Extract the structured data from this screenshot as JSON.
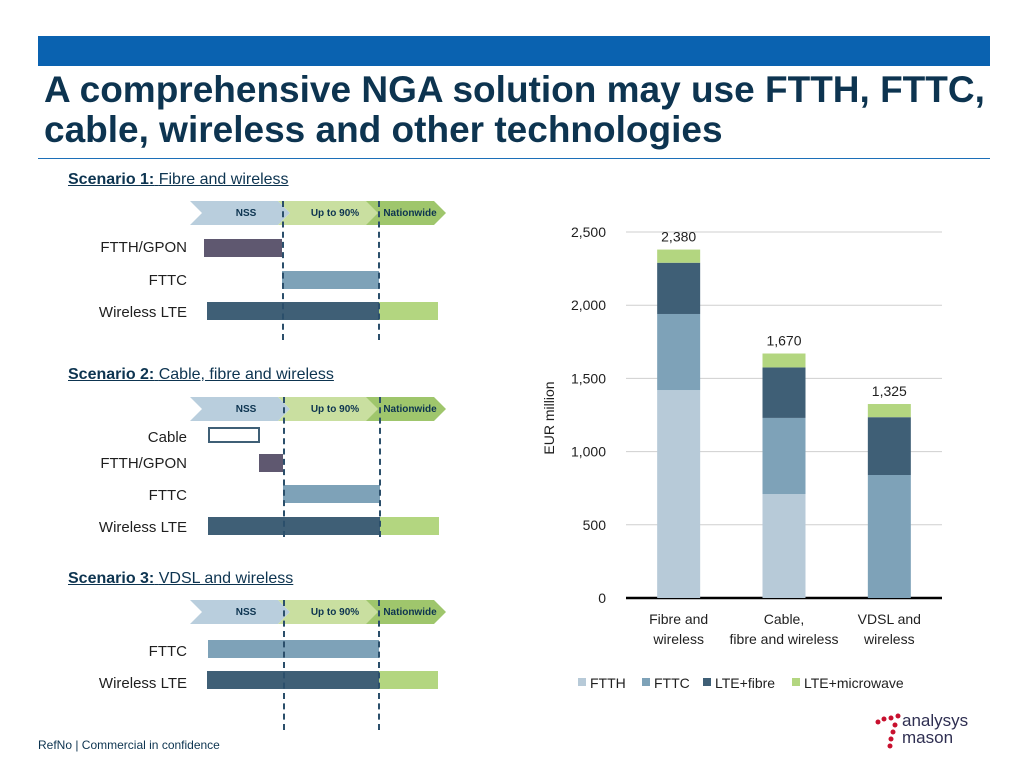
{
  "slide": {
    "title": "A comprehensive NGA solution may use FTTH, FTTC, cable, wireless and other technologies",
    "footer": "RefNo | Commercial in confidence",
    "logo_line1": "analysys",
    "logo_line2": "mason"
  },
  "chevrons": {
    "nss": "NSS",
    "up90": "Up to 90%",
    "nationwide": "Nationwide"
  },
  "scenarios": [
    {
      "prefix": "Scenario 1:",
      "name": "Fibre and wireless",
      "rows": [
        "FTTH/GPON",
        "FTTC",
        "Wireless LTE"
      ]
    },
    {
      "prefix": "Scenario 2:",
      "name": "Cable, fibre and wireless",
      "rows": [
        "Cable",
        "FTTH/GPON",
        "FTTC",
        "Wireless LTE"
      ]
    },
    {
      "prefix": "Scenario 3:",
      "name": "VDSL and wireless",
      "rows": [
        "FTTC",
        "Wireless LTE"
      ]
    }
  ],
  "colors": {
    "ftth": "#b7cad8",
    "fttc": "#7ea2b8",
    "lte_fibre": "#3f5f76",
    "lte_microwave": "#b3d680",
    "ftth_gpon_bar": "#5f5870",
    "brand_blue": "#0a62b0"
  },
  "chart_data": {
    "type": "bar",
    "stacked": true,
    "categories": [
      "Fibre and wireless",
      "Cable, fibre and wireless",
      "VDSL and wireless"
    ],
    "series": [
      {
        "name": "FTTH",
        "values": [
          1420,
          710,
          0
        ]
      },
      {
        "name": "FTTC",
        "values": [
          520,
          520,
          840
        ]
      },
      {
        "name": "LTE+fibre",
        "values": [
          350,
          345,
          395
        ]
      },
      {
        "name": "LTE+microwave",
        "values": [
          90,
          95,
          90
        ]
      }
    ],
    "totals": [
      "2,380",
      "1,670",
      "1,325"
    ],
    "ylabel": "EUR million",
    "ylim": [
      0,
      2500
    ],
    "yticks": [
      "0",
      "500",
      "1,000",
      "1,500",
      "2,000",
      "2,500"
    ],
    "grid": true,
    "legend": "bottom"
  }
}
